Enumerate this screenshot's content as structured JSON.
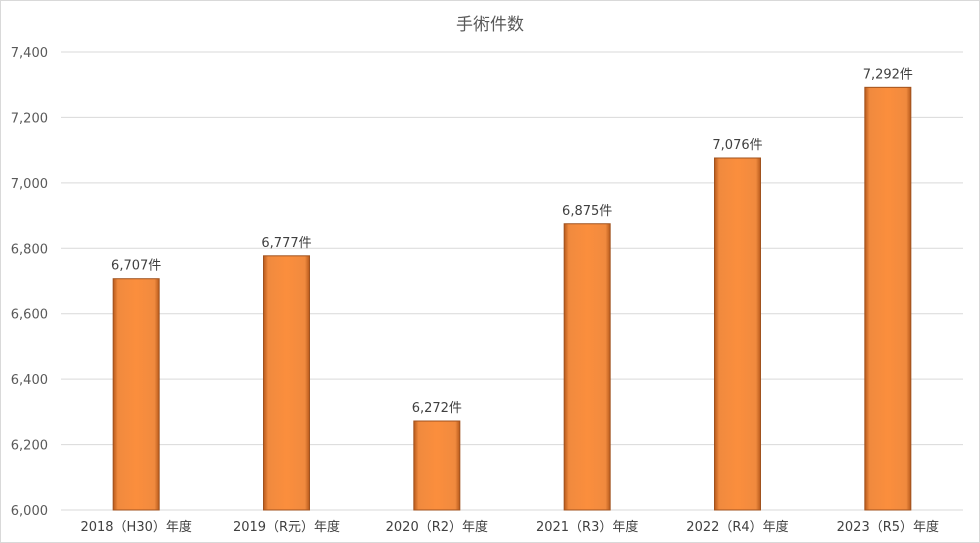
{
  "chart_data": {
    "type": "bar",
    "title": "手術件数",
    "categories": [
      "2018（H30）年度",
      "2019（R元）年度",
      "2020（R2）年度",
      "2021（R3）年度",
      "2022（R4）年度",
      "2023（R5）年度"
    ],
    "values": [
      6707,
      6777,
      6272,
      6875,
      7076,
      7292
    ],
    "data_labels": [
      "6,707件",
      "6,777件",
      "6,272件",
      "6,875件",
      "7,076件",
      "7,292件"
    ],
    "ylim": [
      6000,
      7400
    ],
    "yticks": [
      6000,
      6200,
      6400,
      6600,
      6800,
      7000,
      7200,
      7400
    ],
    "ytick_labels": [
      "6,000",
      "6,200",
      "6,400",
      "6,600",
      "6,800",
      "7,000",
      "7,200",
      "7,400"
    ],
    "xlabel": "",
    "ylabel": "",
    "grid": true,
    "legend": "none",
    "bar_color": "#f98a3b",
    "bar_edge_color": "#a0521e"
  }
}
